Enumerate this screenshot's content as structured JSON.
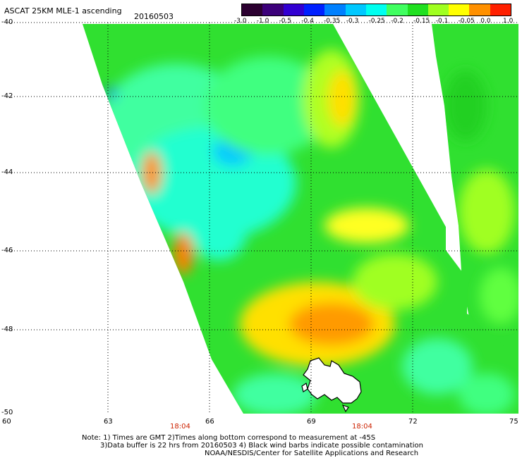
{
  "header": {
    "title": "ASCAT 25KM MLE-1 ascending",
    "date": "20160503"
  },
  "colorbar": {
    "tick_labels": [
      "-3.0",
      "-1.0",
      "-0.5",
      "-0.4",
      "-0.35",
      "-0.3",
      "-0.25",
      "-0.2",
      "-0.15",
      "-0.1",
      "-0.05",
      "0.0",
      "1.0"
    ],
    "colors": [
      "#2b0030",
      "#3c007a",
      "#3200d2",
      "#0020ff",
      "#0080ff",
      "#00c8ff",
      "#00fff0",
      "#40ff60",
      "#20e020",
      "#a0ff20",
      "#ffff00",
      "#ff9000",
      "#ff2000"
    ]
  },
  "axes": {
    "y_labels": [
      "-40",
      "-42",
      "-44",
      "-46",
      "-48",
      "-50"
    ],
    "x_labels": [
      "60",
      "63",
      "66",
      "69",
      "72",
      "75"
    ],
    "times": [
      "18:04",
      "18:04"
    ]
  },
  "footer": {
    "line1": "Note: 1) Times are GMT 2)Times along bottom correspond to measurement at -45S",
    "line2": "3)Data buffer is 22 hrs from 20160503 4) Black wind barbs indicate possible contamination",
    "line3": "NOAA/NESDIS/Center for Satellite Applications and Research"
  }
}
